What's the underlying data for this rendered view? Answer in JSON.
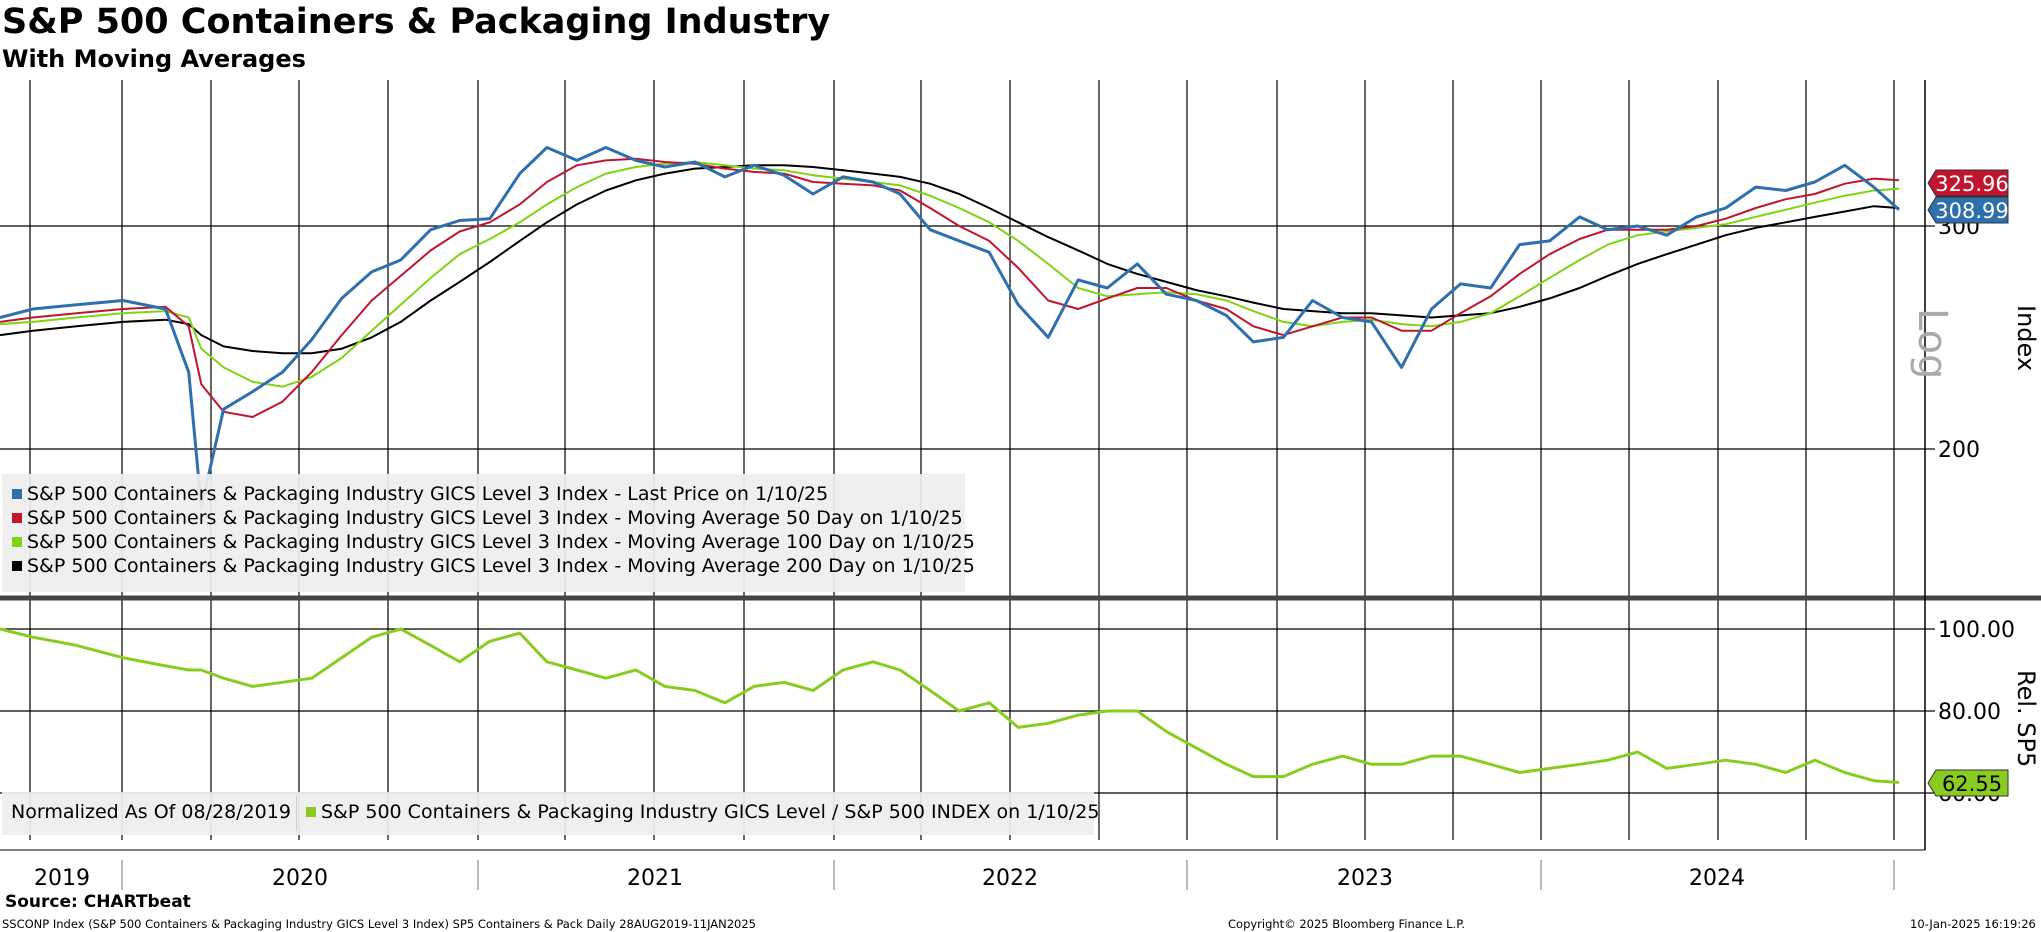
{
  "header": {
    "title": "S&P 500 Containers & Packaging Industry",
    "subtitle": "With Moving Averages"
  },
  "colors": {
    "price": "#2e6fad",
    "ma50": "#c0152f",
    "ma100": "#7fd313",
    "ma200": "#000000",
    "relative": "#88cc22"
  },
  "chart_data": [
    {
      "type": "line",
      "scale": "log",
      "ylabel": "Index",
      "scale_note": "Log",
      "y_ticks": [
        "300",
        "200"
      ],
      "x_labels": [
        "2019",
        "2020",
        "2021",
        "2022",
        "2023",
        "2024"
      ],
      "x": [
        "2019-08-28",
        "2019-10-01",
        "2019-11-15",
        "2020-01-02",
        "2020-02-15",
        "2020-03-10",
        "2020-03-23",
        "2020-04-15",
        "2020-05-15",
        "2020-06-15",
        "2020-07-15",
        "2020-08-15",
        "2020-09-15",
        "2020-10-15",
        "2020-11-15",
        "2020-12-15",
        "2021-01-15",
        "2021-02-15",
        "2021-03-15",
        "2021-04-15",
        "2021-05-15",
        "2021-06-15",
        "2021-07-15",
        "2021-08-15",
        "2021-09-15",
        "2021-10-15",
        "2021-11-15",
        "2021-12-15",
        "2022-01-15",
        "2022-02-15",
        "2022-03-15",
        "2022-04-15",
        "2022-05-15",
        "2022-06-15",
        "2022-07-15",
        "2022-08-15",
        "2022-09-15",
        "2022-10-15",
        "2022-11-15",
        "2022-12-15",
        "2023-01-15",
        "2023-02-15",
        "2023-03-15",
        "2023-04-15",
        "2023-05-15",
        "2023-06-15",
        "2023-07-15",
        "2023-08-15",
        "2023-09-15",
        "2023-10-15",
        "2023-11-15",
        "2023-12-15",
        "2024-01-15",
        "2024-02-15",
        "2024-03-15",
        "2024-04-15",
        "2024-05-15",
        "2024-06-15",
        "2024-07-15",
        "2024-08-15",
        "2024-09-15",
        "2024-10-15",
        "2024-11-15",
        "2024-12-15",
        "2025-01-10"
      ],
      "series": [
        {
          "name": "S&P 500 Containers & Packaging Industry GICS Level 3 Index - Last Price on 1/10/25",
          "values": [
            254,
            258,
            260,
            262,
            258,
            230,
            180,
            215,
            222,
            230,
            244,
            263,
            276,
            282,
            298,
            303,
            304,
            330,
            346,
            338,
            346,
            338,
            334,
            337,
            328,
            335,
            329,
            318,
            328,
            325,
            318,
            298,
            292,
            286,
            260,
            245,
            272,
            268,
            280,
            265,
            262,
            255,
            243,
            245,
            262,
            254,
            252,
            232,
            258,
            270,
            268,
            290,
            292,
            305,
            298,
            300,
            295,
            305,
            310,
            322,
            320,
            325,
            335,
            322,
            309
          ],
          "last_label": "308.99"
        },
        {
          "name": "S&P 500 Containers & Packaging Industry GICS Level 3 Index - Moving Average 50 Day on 1/10/25",
          "values": [
            252,
            254,
            256,
            258,
            259,
            250,
            225,
            214,
            212,
            218,
            230,
            246,
            262,
            274,
            287,
            297,
            302,
            312,
            325,
            335,
            338,
            339,
            337,
            336,
            333,
            331,
            330,
            325,
            324,
            323,
            320,
            310,
            300,
            292,
            278,
            262,
            258,
            263,
            268,
            268,
            262,
            258,
            250,
            246,
            250,
            254,
            254,
            248,
            248,
            256,
            264,
            275,
            285,
            293,
            298,
            298,
            298,
            300,
            304,
            310,
            315,
            318,
            324,
            327,
            326
          ],
          "last_label": "325.96"
        },
        {
          "name": "S&P 500 Containers & Packaging Industry GICS Level 3 Index - Moving Average 100 Day on 1/10/25",
          "values": [
            251,
            252,
            254,
            256,
            257,
            254,
            240,
            232,
            226,
            224,
            228,
            236,
            248,
            260,
            273,
            285,
            293,
            302,
            312,
            322,
            330,
            334,
            336,
            337,
            335,
            333,
            332,
            329,
            327,
            325,
            323,
            317,
            310,
            302,
            292,
            280,
            268,
            264,
            265,
            266,
            265,
            262,
            257,
            252,
            250,
            252,
            253,
            251,
            250,
            252,
            256,
            264,
            273,
            282,
            290,
            295,
            297,
            299,
            301,
            305,
            309,
            313,
            317,
            320,
            321
          ]
        },
        {
          "name": "S&P 500 Containers & Packaging Industry GICS Level 3 Index - Moving Average 200 Day on 1/10/25",
          "values": [
            246,
            248,
            250,
            252,
            253,
            251,
            246,
            241,
            239,
            238,
            238,
            240,
            245,
            252,
            262,
            271,
            281,
            292,
            302,
            312,
            320,
            326,
            330,
            333,
            334,
            335,
            335,
            334,
            332,
            330,
            328,
            324,
            318,
            310,
            302,
            294,
            287,
            280,
            275,
            271,
            267,
            264,
            261,
            258,
            257,
            256,
            256,
            255,
            254,
            255,
            256,
            259,
            263,
            268,
            274,
            280,
            285,
            290,
            295,
            299,
            302,
            305,
            308,
            311,
            310
          ]
        }
      ]
    },
    {
      "type": "line",
      "ylabel": "Rel. SP5",
      "y_ticks": [
        "100.00",
        "80.00",
        "60.00"
      ],
      "ylim": [
        60,
        100
      ],
      "note": "Normalized As Of 08/28/2019",
      "x": [
        "2019-08-28",
        "2019-10-01",
        "2019-11-15",
        "2020-01-02",
        "2020-02-15",
        "2020-03-10",
        "2020-03-23",
        "2020-04-15",
        "2020-05-15",
        "2020-06-15",
        "2020-07-15",
        "2020-08-15",
        "2020-09-15",
        "2020-10-15",
        "2020-11-15",
        "2020-12-15",
        "2021-01-15",
        "2021-02-15",
        "2021-03-15",
        "2021-04-15",
        "2021-05-15",
        "2021-06-15",
        "2021-07-15",
        "2021-08-15",
        "2021-09-15",
        "2021-10-15",
        "2021-11-15",
        "2021-12-15",
        "2022-01-15",
        "2022-02-15",
        "2022-03-15",
        "2022-04-15",
        "2022-05-15",
        "2022-06-15",
        "2022-07-15",
        "2022-08-15",
        "2022-09-15",
        "2022-10-15",
        "2022-11-15",
        "2022-12-15",
        "2023-01-15",
        "2023-02-15",
        "2023-03-15",
        "2023-04-15",
        "2023-05-15",
        "2023-06-15",
        "2023-07-15",
        "2023-08-15",
        "2023-09-15",
        "2023-10-15",
        "2023-11-15",
        "2023-12-15",
        "2024-01-15",
        "2024-02-15",
        "2024-03-15",
        "2024-04-15",
        "2024-05-15",
        "2024-06-15",
        "2024-07-15",
        "2024-08-15",
        "2024-09-15",
        "2024-10-15",
        "2024-11-15",
        "2024-12-15",
        "2025-01-10"
      ],
      "series": [
        {
          "name": "S&P 500 Containers & Packaging Industry GICS Level / S&P 500 INDEX on 1/10/25",
          "values": [
            100,
            98,
            96,
            93,
            91,
            90,
            90,
            88,
            86,
            87,
            88,
            93,
            98,
            100,
            96,
            92,
            97,
            99,
            92,
            90,
            88,
            90,
            86,
            85,
            82,
            86,
            87,
            85,
            90,
            92,
            90,
            85,
            80,
            82,
            76,
            77,
            79,
            80,
            80,
            75,
            71,
            67,
            64,
            64,
            67,
            69,
            67,
            67,
            69,
            69,
            67,
            65,
            66,
            67,
            68,
            70,
            66,
            67,
            68,
            67,
            65,
            68,
            65,
            63,
            62.55
          ],
          "last_label": "62.55"
        }
      ]
    }
  ],
  "legend_top": [
    "S&P 500 Containers & Packaging Industry GICS Level 3 Index - Last Price on 1/10/25",
    "S&P 500 Containers & Packaging Industry GICS Level 3 Index - Moving Average 50 Day on 1/10/25",
    "S&P 500 Containers & Packaging Industry GICS Level 3 Index - Moving Average 100 Day on 1/10/25",
    "S&P 500 Containers & Packaging Industry GICS Level 3 Index - Moving Average 200 Day on 1/10/25"
  ],
  "legend_bottom": {
    "note": "Normalized As Of 08/28/2019",
    "item": "S&P 500 Containers & Packaging Industry GICS Level / S&P 500 INDEX on 1/10/25"
  },
  "footer": {
    "source": "Source: CHARTbeat",
    "left": "SSCONP Index (S&P 500 Containers & Packaging Industry GICS Level 3 Index) SP5 Containers & Pack  Daily 28AUG2019-11JAN2025",
    "middle": "Copyright© 2025 Bloomberg Finance L.P.",
    "right": "10-Jan-2025 16:19:26"
  }
}
